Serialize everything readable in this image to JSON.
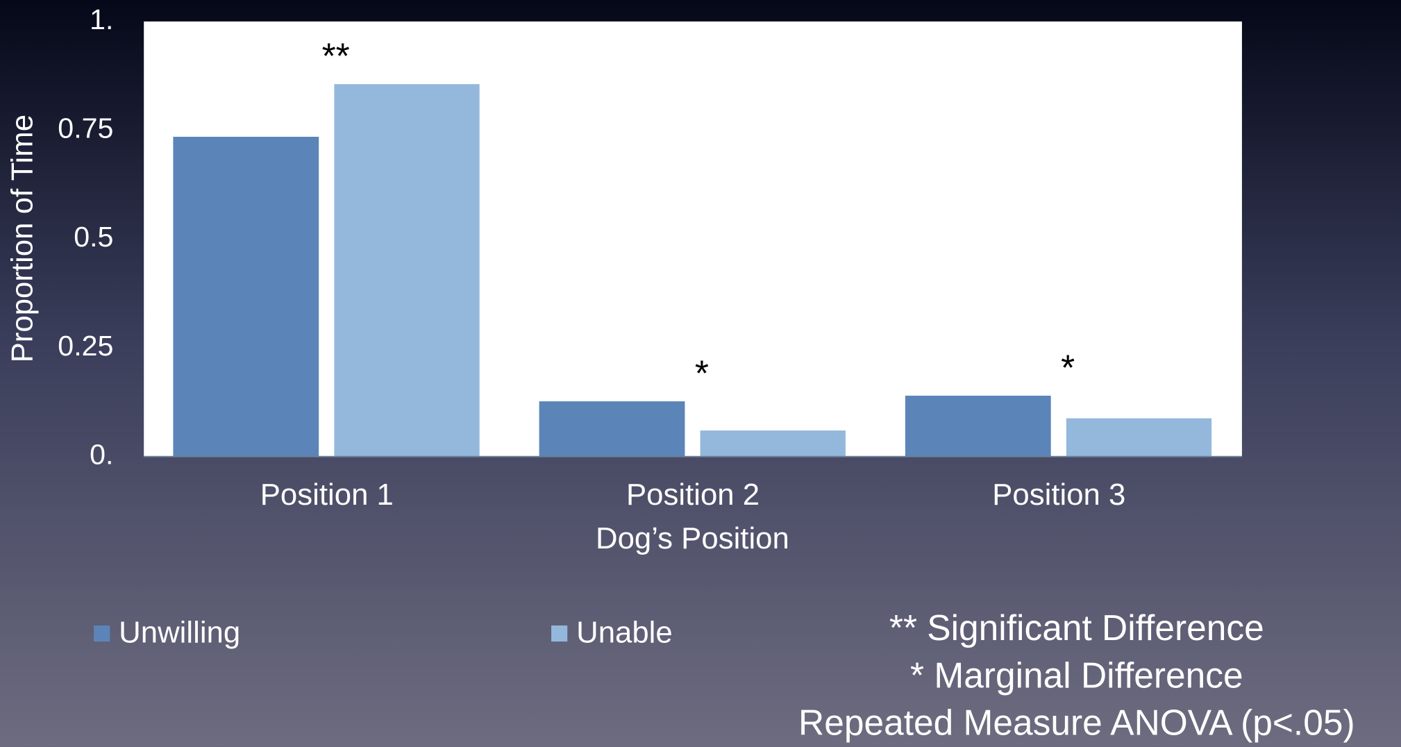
{
  "chart_data": {
    "type": "bar",
    "x_label": "Dog’s Position",
    "y_label": "Proportion of Time",
    "categories": [
      "Position 1",
      "Position 2",
      "Position 3"
    ],
    "series": [
      {
        "name": "Unwilling",
        "color": "#5b85b8",
        "values": [
          0.735,
          0.127,
          0.14
        ]
      },
      {
        "name": "Unable",
        "color": "#93b8dc",
        "values": [
          0.856,
          0.06,
          0.088
        ]
      }
    ],
    "ylim": [
      0,
      1
    ],
    "yticks": [
      {
        "value": 0,
        "label": "0."
      },
      0.25,
      0.5,
      0.75,
      {
        "value": 1,
        "label": "1."
      }
    ],
    "grid": false,
    "legend": "bottom",
    "annotations": [
      "**",
      "*",
      "*"
    ],
    "footnotes": [
      "** Significant Difference",
      "* Marginal Difference",
      "Repeated Measure ANOVA (p<.05)"
    ]
  }
}
